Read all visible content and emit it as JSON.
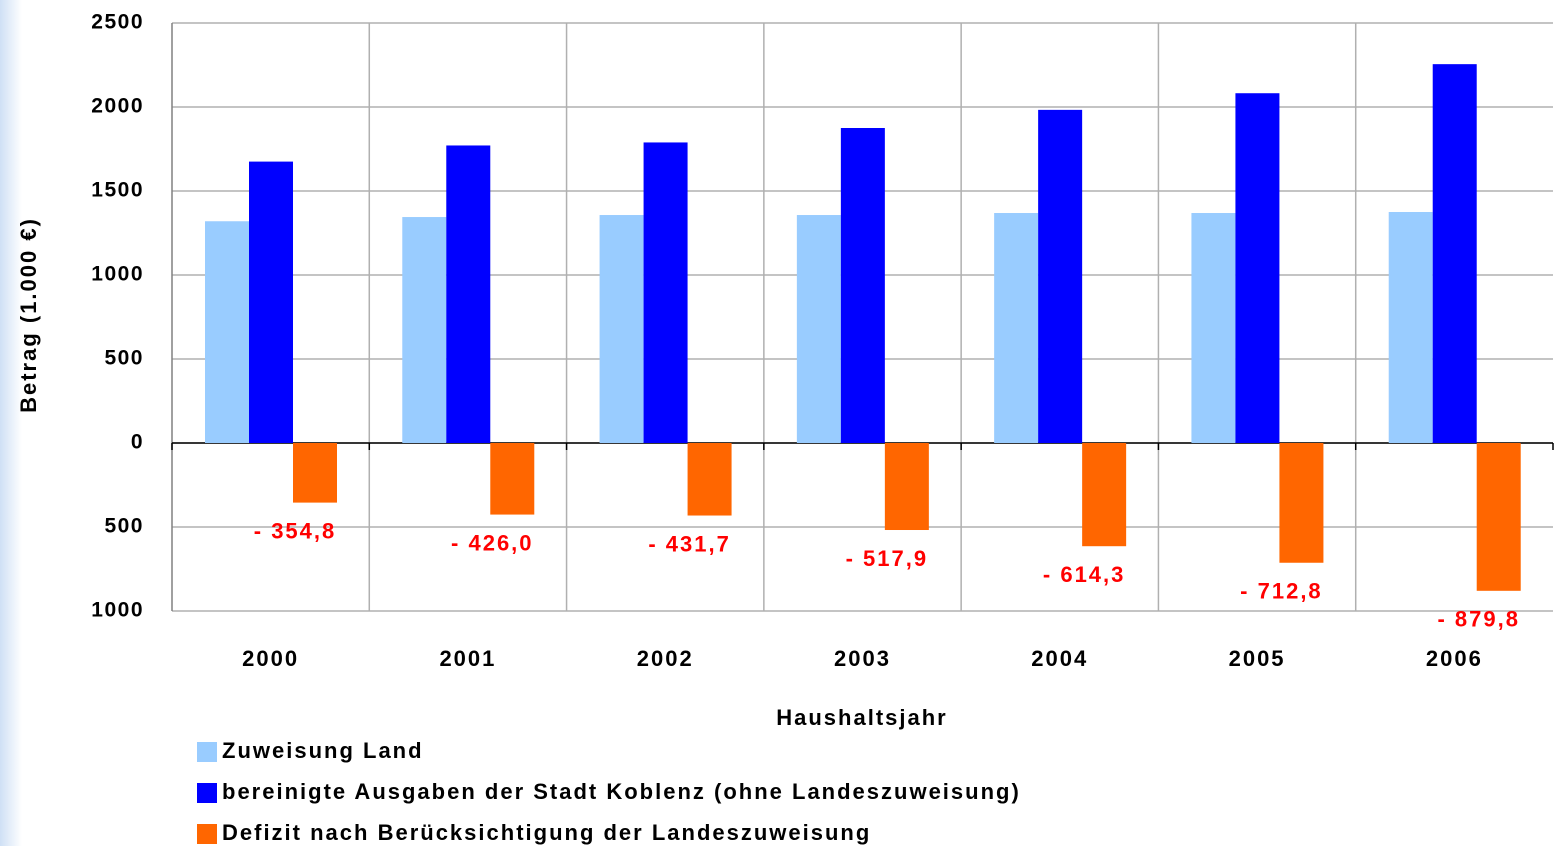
{
  "chart_data": {
    "type": "bar",
    "y_label": "Betrag (1.000 €)",
    "x_label": "Haushaltsjahr",
    "categories": [
      "2000",
      "2001",
      "2002",
      "2003",
      "2004",
      "2005",
      "2006"
    ],
    "series": [
      {
        "name": "Zuweisung Land",
        "color": "#99ccff",
        "values": [
          1320,
          1345,
          1357,
          1357,
          1369,
          1369,
          1375
        ]
      },
      {
        "name": "bereinigte Ausgaben der Stadt Koblenz (ohne Landeszuweisung)",
        "color": "#0000ff",
        "values": [
          1675,
          1771,
          1789,
          1875,
          1983,
          2082,
          2255
        ]
      },
      {
        "name": "Defizit nach Berücksichtigung der Landeszuweisung",
        "color": "#ff6600",
        "values": [
          -354.8,
          -426.0,
          -431.7,
          -517.9,
          -614.3,
          -712.8,
          -879.8
        ],
        "value_labels": [
          "- 354,8",
          "- 426,0",
          "- 431,7",
          "- 517,9",
          "- 614,3",
          "- 712,8",
          "- 879,8"
        ]
      }
    ],
    "ylim": [
      -1000,
      2500
    ],
    "yticks": [
      {
        "value": -1000,
        "label": "1000"
      },
      {
        "value": -500,
        "label": "500"
      },
      0,
      500,
      1000,
      1500,
      2000,
      2500
    ],
    "grid": true
  }
}
